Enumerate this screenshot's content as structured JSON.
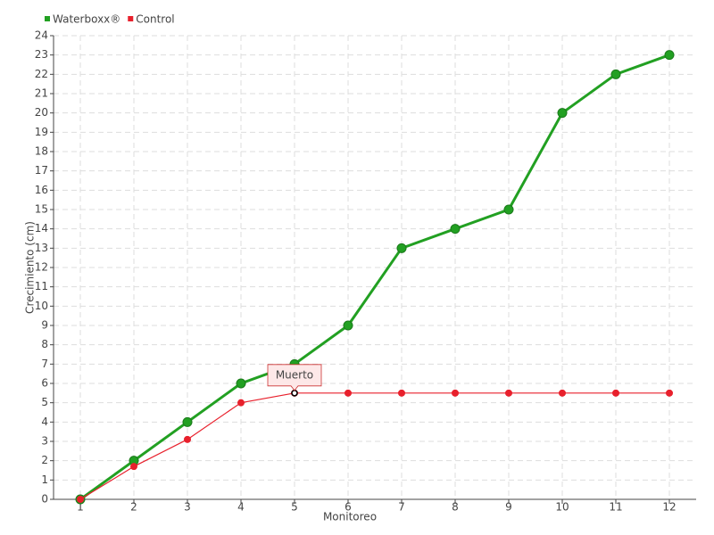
{
  "chart_data": {
    "type": "line",
    "x": [
      1,
      2,
      3,
      4,
      5,
      6,
      7,
      8,
      9,
      10,
      11,
      12
    ],
    "xlim": [
      0.5,
      12.5
    ],
    "xticks": [
      1,
      2,
      3,
      4,
      5,
      6,
      7,
      8,
      9,
      10,
      11,
      12
    ],
    "ylim": [
      0,
      24
    ],
    "yticks": [
      0,
      1,
      2,
      3,
      4,
      5,
      6,
      7,
      8,
      9,
      10,
      11,
      12,
      13,
      14,
      15,
      16,
      17,
      18,
      19,
      20,
      21,
      22,
      23,
      24
    ],
    "xlabel": "Monitoreo",
    "ylabel": "Crecimiento (cm)",
    "grid": true,
    "legend": "top-left",
    "series": [
      {
        "name": "Waterboxx®",
        "color": "#22a022",
        "values": [
          0,
          2,
          4,
          6,
          7,
          9,
          13,
          14,
          15,
          20,
          22,
          23
        ]
      },
      {
        "name": "Control",
        "color": "#e8202c",
        "values": [
          0,
          1.7,
          3.1,
          5,
          5.5,
          5.5,
          5.5,
          5.5,
          5.5,
          5.5,
          5.5,
          5.5
        ]
      }
    ],
    "annotation": {
      "text": "Muerto",
      "x": 5,
      "y": 5.5
    }
  }
}
